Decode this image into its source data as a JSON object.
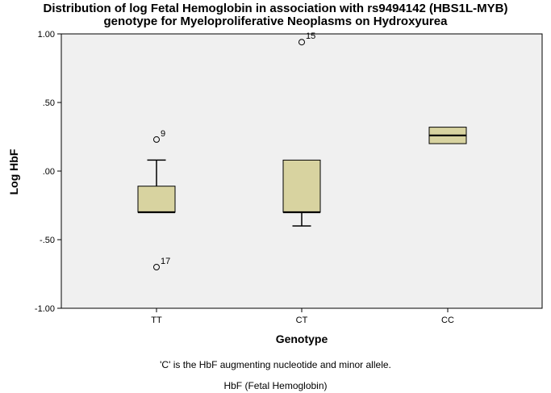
{
  "chart_data": {
    "type": "boxplot",
    "title": "Distribution of log Fetal Hemoglobin in association with rs9494142 (HBS1L-MYB)",
    "subtitle": "genotype for Myeloproliferative Neoplasms on Hydroxyurea",
    "xlabel": "Genotype",
    "ylabel": "Log HbF",
    "ylim": [
      -1.0,
      1.0
    ],
    "yticks": [
      {
        "value": 1.0,
        "label": "1.00"
      },
      {
        "value": 0.5,
        "label": ".50"
      },
      {
        "value": 0.0,
        "label": ".00"
      },
      {
        "value": -0.5,
        "label": "-.50"
      },
      {
        "value": -1.0,
        "label": "-1.00"
      }
    ],
    "categories": [
      "TT",
      "CT",
      "CC"
    ],
    "boxes": [
      {
        "category": "TT",
        "whisker_low": -0.3,
        "q1": -0.3,
        "median": -0.3,
        "q3": -0.11,
        "whisker_high": 0.08,
        "outliers": [
          {
            "value": 0.23,
            "label": "9"
          },
          {
            "value": -0.7,
            "label": "17"
          }
        ]
      },
      {
        "category": "CT",
        "whisker_low": -0.4,
        "q1": -0.3,
        "median": -0.3,
        "q3": 0.08,
        "whisker_high": 0.08,
        "outliers": [
          {
            "value": 0.94,
            "label": "15"
          }
        ]
      },
      {
        "category": "CC",
        "whisker_low": 0.2,
        "q1": 0.2,
        "median": 0.26,
        "q3": 0.32,
        "whisker_high": 0.32,
        "outliers": []
      }
    ],
    "box_color": "#d8d3a0",
    "plot_background": "#f0f0f0",
    "grid": false,
    "legend": "none"
  },
  "footnotes": {
    "line1": "'C' is the HbF augmenting nucleotide and minor allele.",
    "line2": "HbF (Fetal Hemoglobin)"
  }
}
